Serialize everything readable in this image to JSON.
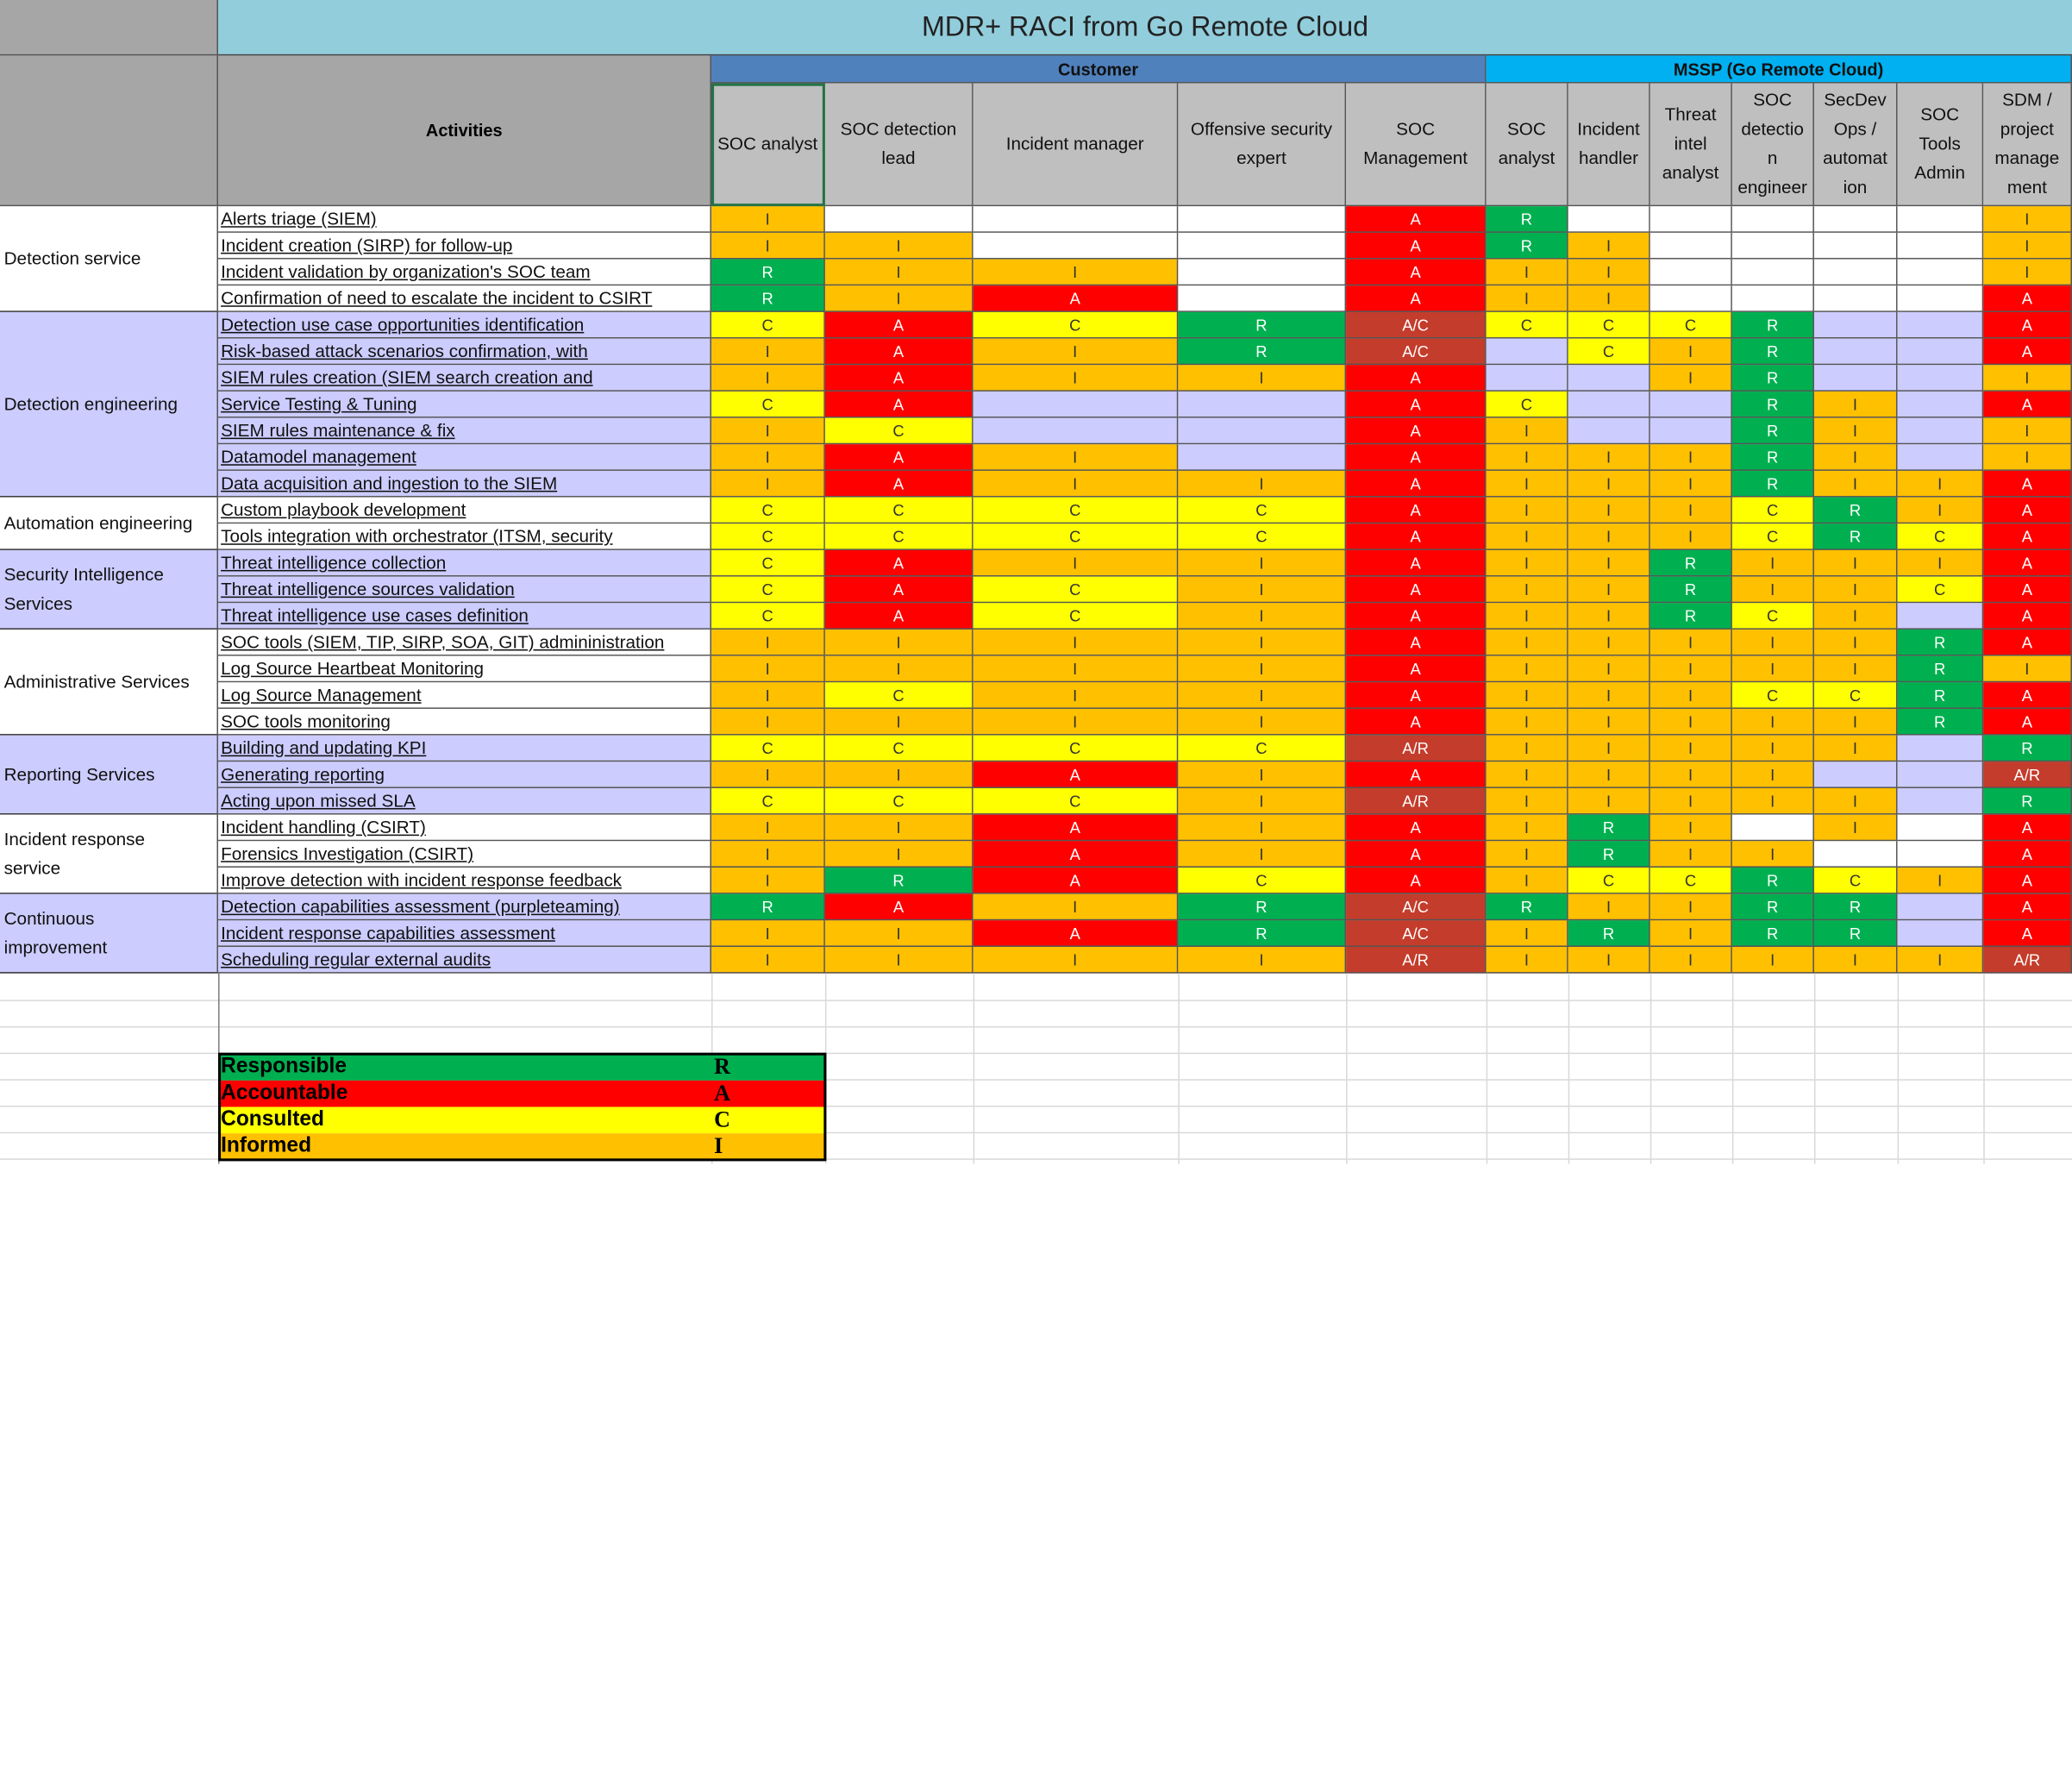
{
  "title": "MDR+ RACI from Go Remote Cloud",
  "groups": {
    "customer": "Customer",
    "mssp": "MSSP (Go Remote Cloud)"
  },
  "activities_header": "Activities",
  "role_headers": [
    [
      "SOC analyst"
    ],
    [
      "SOC detection",
      "lead"
    ],
    [
      "Incident manager"
    ],
    [
      "Offensive security",
      "expert"
    ],
    [
      "SOC",
      "Management"
    ],
    [
      "SOC",
      "analyst"
    ],
    [
      "Incident",
      "handler"
    ],
    [
      "Threat",
      "intel",
      "analyst"
    ],
    [
      "SOC",
      "detectio",
      "n",
      "engineer"
    ],
    [
      "SecDev",
      "Ops /",
      "automat",
      "ion"
    ],
    [
      "SOC",
      "Tools",
      "Admin"
    ],
    [
      "SDM /",
      "project",
      "manage",
      "ment"
    ]
  ],
  "sections": [
    {
      "name": [
        "Detection service"
      ],
      "bg": "#ffffff",
      "start": 0,
      "count": 4
    },
    {
      "name": [
        "Detection engineering"
      ],
      "bg": "#ccccff",
      "start": 4,
      "count": 7
    },
    {
      "name": [
        "Automation engineering"
      ],
      "bg": "#ffffff",
      "start": 11,
      "count": 2
    },
    {
      "name": [
        "Security Intelligence",
        "Services"
      ],
      "bg": "#ccccff",
      "start": 13,
      "count": 3
    },
    {
      "name": [
        "Administrative Services"
      ],
      "bg": "#ffffff",
      "start": 16,
      "count": 4
    },
    {
      "name": [
        "Reporting Services"
      ],
      "bg": "#ccccff",
      "start": 20,
      "count": 3
    },
    {
      "name": [
        "Incident response",
        "service"
      ],
      "bg": "#ffffff",
      "start": 23,
      "count": 3
    },
    {
      "name": [
        "Continuous",
        "improvement"
      ],
      "bg": "#ccccff",
      "start": 26,
      "count": 3
    }
  ],
  "rows": [
    {
      "activity": "Alerts triage (SIEM)",
      "bg": "#ffffff",
      "values": [
        "I",
        "",
        "",
        "",
        "A",
        "R",
        "",
        "",
        "",
        "",
        "",
        "I"
      ]
    },
    {
      "activity": "Incident creation (SIRP) for follow-up",
      "bg": "#ffffff",
      "values": [
        "I",
        "I",
        "",
        "",
        "A",
        "R",
        "I",
        "",
        "",
        "",
        "",
        "I"
      ]
    },
    {
      "activity": "Incident validation by organization's SOC team",
      "bg": "#ffffff",
      "values": [
        "R",
        "I",
        "I",
        "",
        "A",
        "I",
        "I",
        "",
        "",
        "",
        "",
        "I"
      ]
    },
    {
      "activity": "Confirmation of need to escalate the incident to CSIRT",
      "bg": "#ffffff",
      "values": [
        "R",
        "I",
        "A",
        "",
        "A",
        "I",
        "I",
        "",
        "",
        "",
        "",
        "A"
      ]
    },
    {
      "activity": "Detection use case opportunities identification",
      "bg": "#ccccff",
      "values": [
        "C",
        "A",
        "C",
        "R",
        "A/C",
        "C",
        "C",
        "C",
        "R",
        "",
        "",
        "A"
      ]
    },
    {
      "activity": "Risk-based attack scenarios confirmation, with",
      "bg": "#ccccff",
      "values": [
        "I",
        "A",
        "I",
        "R",
        "A/C",
        "",
        "C",
        "I",
        "R",
        "",
        "",
        "A"
      ]
    },
    {
      "activity": "SIEM rules creation (SIEM search creation and",
      "bg": "#ccccff",
      "values": [
        "I",
        "A",
        "I",
        "I",
        "A",
        "",
        "",
        "I",
        "R",
        "",
        "",
        "I"
      ]
    },
    {
      "activity": "Service Testing & Tuning",
      "bg": "#ccccff",
      "values": [
        "C",
        "A",
        "",
        "",
        "A",
        "C",
        "",
        "",
        "R",
        "I",
        "",
        "A"
      ]
    },
    {
      "activity": "SIEM rules maintenance & fix",
      "bg": "#ccccff",
      "values": [
        "I",
        "C",
        "",
        "",
        "A",
        "I",
        "",
        "",
        "R",
        "I",
        "",
        "I"
      ]
    },
    {
      "activity": "Datamodel management",
      "bg": "#ccccff",
      "values": [
        "I",
        "A",
        "I",
        "",
        "A",
        "I",
        "I",
        "I",
        "R",
        "I",
        "",
        "I"
      ]
    },
    {
      "activity": "Data acquisition and ingestion to the SIEM",
      "bg": "#ccccff",
      "values": [
        "I",
        "A",
        "I",
        "I",
        "A",
        "I",
        "I",
        "I",
        "R",
        "I",
        "I",
        "A"
      ]
    },
    {
      "activity": "Custom playbook development",
      "bg": "#ffffff",
      "values": [
        "C",
        "C",
        "C",
        "C",
        "A",
        "I",
        "I",
        "I",
        "C",
        "R",
        "I",
        "A"
      ]
    },
    {
      "activity": "Tools integration with orchestrator (ITSM, security",
      "bg": "#ffffff",
      "values": [
        "C",
        "C",
        "C",
        "C",
        "A",
        "I",
        "I",
        "I",
        "C",
        "R",
        "C",
        "A"
      ]
    },
    {
      "activity": "Threat intelligence collection",
      "bg": "#ccccff",
      "values": [
        "C",
        "A",
        "I",
        "I",
        "A",
        "I",
        "I",
        "R",
        "I",
        "I",
        "I",
        "A"
      ]
    },
    {
      "activity": "Threat intelligence sources validation",
      "bg": "#ccccff",
      "values": [
        "C",
        "A",
        "C",
        "I",
        "A",
        "I",
        "I",
        "R",
        "I",
        "I",
        "C",
        "A"
      ]
    },
    {
      "activity": "Threat intelligence use cases definition",
      "bg": "#ccccff",
      "values": [
        "C",
        "A",
        "C",
        "I",
        "A",
        "I",
        "I",
        "R",
        "C",
        "I",
        "",
        "A"
      ]
    },
    {
      "activity": "SOC tools (SIEM, TIP, SIRP, SOA, GIT) admininistration",
      "bg": "#ffffff",
      "values": [
        "I",
        "I",
        "I",
        "I",
        "A",
        "I",
        "I",
        "I",
        "I",
        "I",
        "R",
        "A"
      ]
    },
    {
      "activity": "Log Source Heartbeat Monitoring",
      "bg": "#ffffff",
      "values": [
        "I",
        "I",
        "I",
        "I",
        "A",
        "I",
        "I",
        "I",
        "I",
        "I",
        "R",
        "I"
      ]
    },
    {
      "activity": "Log Source Management",
      "bg": "#ffffff",
      "values": [
        "I",
        "C",
        "I",
        "I",
        "A",
        "I",
        "I",
        "I",
        "C",
        "C",
        "R",
        "A"
      ]
    },
    {
      "activity": "SOC tools monitoring",
      "bg": "#ffffff",
      "values": [
        "I",
        "I",
        "I",
        "I",
        "A",
        "I",
        "I",
        "I",
        "I",
        "I",
        "R",
        "A"
      ]
    },
    {
      "activity": "Building and updating KPI",
      "bg": "#ccccff",
      "values": [
        "C",
        "C",
        "C",
        "C",
        "A/R",
        "I",
        "I",
        "I",
        "I",
        "I",
        "",
        "R"
      ]
    },
    {
      "activity": "Generating reporting",
      "bg": "#ccccff",
      "values": [
        "I",
        "I",
        "A",
        "I",
        "A",
        "I",
        "I",
        "I",
        "I",
        "",
        "",
        "A/R"
      ]
    },
    {
      "activity": "Acting upon missed SLA",
      "bg": "#ccccff",
      "values": [
        "C",
        "C",
        "C",
        "I",
        "A/R",
        "I",
        "I",
        "I",
        "I",
        "I",
        "",
        "R"
      ]
    },
    {
      "activity": "Incident handling (CSIRT)",
      "bg": "#ffffff",
      "values": [
        "I",
        "I",
        "A",
        "I",
        "A",
        "I",
        "R",
        "I",
        "",
        "I",
        "",
        "A"
      ]
    },
    {
      "activity": "Forensics Investigation (CSIRT)",
      "bg": "#ffffff",
      "values": [
        "I",
        "I",
        "A",
        "I",
        "A",
        "I",
        "R",
        "I",
        "I",
        "",
        "",
        "A"
      ]
    },
    {
      "activity": "Improve detection with incident response feedback",
      "bg": "#ffffff",
      "values": [
        "I",
        "R",
        "A",
        "C",
        "A",
        "I",
        "C",
        "C",
        "R",
        "C",
        "I",
        "A"
      ]
    },
    {
      "activity": "Detection capabilities assessment (purpleteaming)",
      "bg": "#ccccff",
      "values": [
        "R",
        "A",
        "I",
        "R",
        "A/C",
        "R",
        "I",
        "I",
        "R",
        "R",
        "",
        "A"
      ]
    },
    {
      "activity": "Incident response capabilities assessment",
      "bg": "#ccccff",
      "values": [
        "I",
        "I",
        "A",
        "R",
        "A/C",
        "I",
        "R",
        "I",
        "R",
        "R",
        "",
        "A"
      ]
    },
    {
      "activity": "Scheduling regular external audits",
      "bg": "#ccccff",
      "values": [
        "I",
        "I",
        "I",
        "I",
        "A/R",
        "I",
        "I",
        "I",
        "I",
        "I",
        "I",
        "A/R"
      ]
    }
  ],
  "legend": [
    {
      "label": "Responsible",
      "key": "R",
      "color": "#00b050"
    },
    {
      "label": "Accountable",
      "key": "A",
      "color": "#ff0000"
    },
    {
      "label": "Consulted",
      "key": "C",
      "color": "#ffff00"
    },
    {
      "label": "Informed",
      "key": "I",
      "color": "#ffc000"
    }
  ]
}
